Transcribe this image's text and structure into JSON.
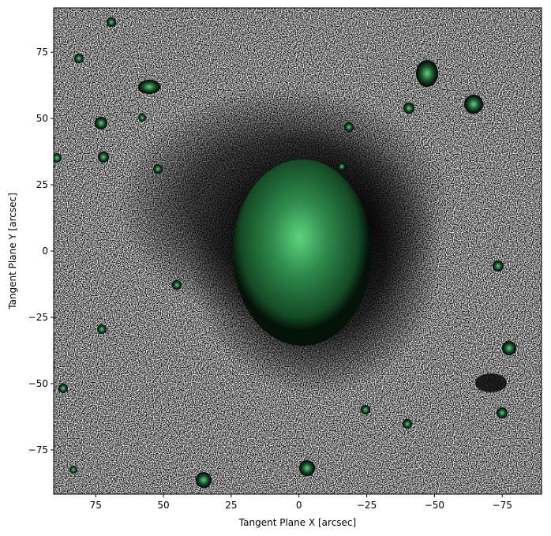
{
  "chart_data": {
    "type": "image",
    "xlabel": "Tangent Plane X [arcsec]",
    "ylabel": "Tangent Plane Y [arcsec]",
    "xlim": [
      90.5,
      -89.5
    ],
    "ylim": [
      -91.7,
      91.7
    ],
    "xticks": [
      75,
      50,
      25,
      0,
      {
        "value": -25,
        "label": "−25"
      },
      {
        "value": -50,
        "label": "−50"
      },
      {
        "value": -75,
        "label": "−75"
      }
    ],
    "yticks": [
      {
        "value": -75,
        "label": "−75"
      },
      {
        "value": -50,
        "label": "−50"
      },
      {
        "value": -25,
        "label": "−25"
      },
      0,
      25,
      50,
      75
    ]
  }
}
